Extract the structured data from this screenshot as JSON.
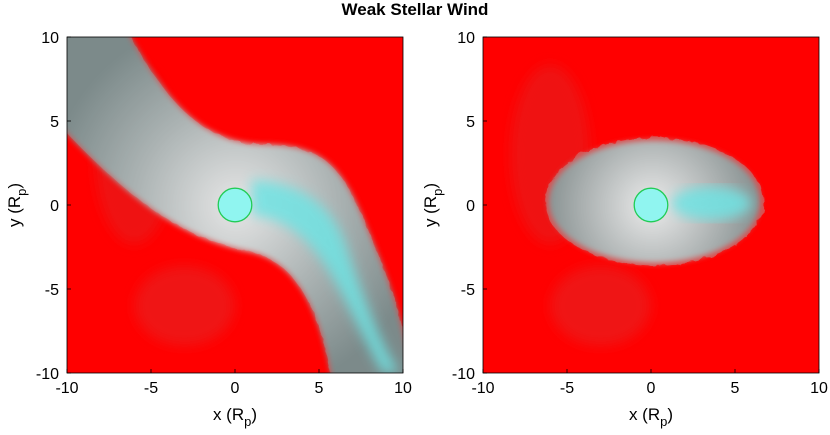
{
  "title": "Weak Stellar Wind",
  "chart_data": [
    {
      "type": "heatmap",
      "xlabel": "x (R",
      "xlabel_sub": "p",
      "xlabel_end": ")",
      "ylabel": "y (R",
      "ylabel_sub": "p",
      "ylabel_end": ")",
      "xlim": [
        -10,
        10
      ],
      "ylim": [
        -10,
        10
      ],
      "xticks": [
        "-10",
        "-5",
        "0",
        "5",
        "10"
      ],
      "yticks": [
        "-10",
        "-5",
        "0",
        "5",
        "10"
      ],
      "grid": false,
      "planet": {
        "x": 0,
        "y": 0,
        "radius": 1
      },
      "structure": "tilted-stream",
      "colors": {
        "background": "#ff0000",
        "envelope": "#c8c8c8",
        "tail": "#6fe3e3",
        "planet": "#90f5f0",
        "planet_edge": "#22cc55"
      }
    },
    {
      "type": "heatmap",
      "xlabel": "x (R",
      "xlabel_sub": "p",
      "xlabel_end": ")",
      "ylabel": "y (R",
      "ylabel_sub": "p",
      "ylabel_end": ")",
      "xlim": [
        -10,
        10
      ],
      "ylim": [
        -10,
        10
      ],
      "xticks": [
        "-10",
        "-5",
        "0",
        "5",
        "10"
      ],
      "yticks": [
        "-10",
        "-5",
        "0",
        "5",
        "10"
      ],
      "grid": false,
      "planet": {
        "x": 0,
        "y": 0,
        "radius": 1
      },
      "structure": "ellipse-envelope",
      "colors": {
        "background": "#ff0000",
        "envelope": "#c8c8c8",
        "tail": "#6fe3e3",
        "planet": "#90f5f0",
        "planet_edge": "#22cc55"
      }
    }
  ]
}
